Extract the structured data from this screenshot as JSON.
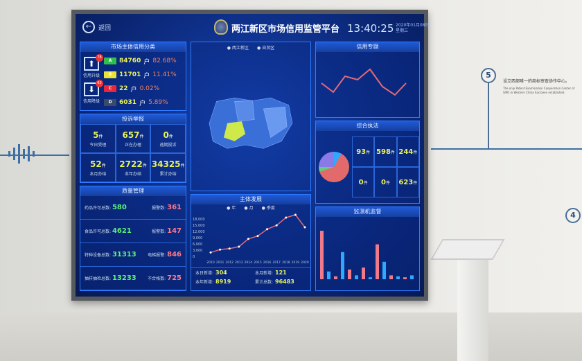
{
  "wall": {
    "step5": "5",
    "step4": "4",
    "text_cn": "设立西部唯一的商标审查协作中心。",
    "text_en": "The only Patent Examination Cooperation Center of SIPO in Western China has been established."
  },
  "header": {
    "back_label": "返回",
    "title": "两江新区市场信用监管平台",
    "time": "13:40:25",
    "date": "2020年01月08日",
    "weekday": "星期三"
  },
  "credit": {
    "title": "市场主体信用分类",
    "upgrade_label": "信用升级",
    "upgrade_count": "78",
    "downgrade_label": "信用降级",
    "downgrade_count": "63",
    "classes": [
      {
        "grade": "A",
        "color": "#2fbf4f",
        "count": "84760",
        "unit": "户",
        "pct": "82.68%"
      },
      {
        "grade": "B",
        "color": "#e8e23a",
        "count": "11701",
        "unit": "户",
        "pct": "11.41%"
      },
      {
        "grade": "C",
        "color": "#e8283a",
        "count": "22",
        "unit": "户",
        "pct": "0.02%"
      },
      {
        "grade": "D",
        "color": "#3a4a6a",
        "count": "6031",
        "unit": "户",
        "pct": "5.89%"
      }
    ]
  },
  "complaints": {
    "title": "投诉举报",
    "unit": "件",
    "cells": [
      {
        "value": "5",
        "label": "今日受理"
      },
      {
        "value": "657",
        "label": "正在办理"
      },
      {
        "value": "0",
        "label": "逾期投诉"
      },
      {
        "value": "52",
        "label": "本月办结"
      },
      {
        "value": "2722",
        "label": "本年办结"
      },
      {
        "value": "34325",
        "label": "累计办结"
      }
    ]
  },
  "quality": {
    "title": "质量管理",
    "rows": [
      {
        "l": "药品许可总数:",
        "lv": "580",
        "r": "报警数:",
        "rv": "361"
      },
      {
        "l": "食品许可总数:",
        "lv": "4621",
        "r": "报警数:",
        "rv": "147"
      },
      {
        "l": "特种设备总数:",
        "lv": "31313",
        "r": "电梯报警:",
        "rv": "846"
      },
      {
        "l": "抽样抽检总数:",
        "lv": "13233",
        "r": "不合格数:",
        "rv": "725"
      }
    ]
  },
  "map": {
    "radios": [
      "两江新区",
      "自贸区"
    ]
  },
  "development": {
    "title": "主体发展",
    "radios": [
      "年",
      "月",
      "季度"
    ],
    "stats": [
      {
        "l": "本日新增:",
        "v": "304"
      },
      {
        "l": "本月新增:",
        "v": "121"
      },
      {
        "l": "本年新增:",
        "v": "8919"
      },
      {
        "l": "累计总数:",
        "v": "96483"
      }
    ],
    "chart_data": {
      "type": "line",
      "x": [
        "2010",
        "2011",
        "2012",
        "2013",
        "2014",
        "2015",
        "2016",
        "2017",
        "2018",
        "2019",
        "2020"
      ],
      "values": [
        2000,
        3500,
        4000,
        5000,
        9000,
        10500,
        14000,
        16000,
        20000,
        23000,
        15000
      ],
      "ylim": [
        0,
        20000
      ],
      "yticks": [
        "0",
        "3,000",
        "6,000",
        "9,000",
        "12,000",
        "15,000",
        "18,000"
      ]
    }
  },
  "right": {
    "credit_topic": "信用专题",
    "enforcement": {
      "title": "综合执法",
      "unit": "件",
      "cells": [
        {
          "value": "93"
        },
        {
          "value": "598"
        },
        {
          "value": "244"
        },
        {
          "value": "0"
        },
        {
          "value": "0"
        },
        {
          "value": "623"
        }
      ]
    },
    "monitor": {
      "title": "监测机监督"
    }
  }
}
